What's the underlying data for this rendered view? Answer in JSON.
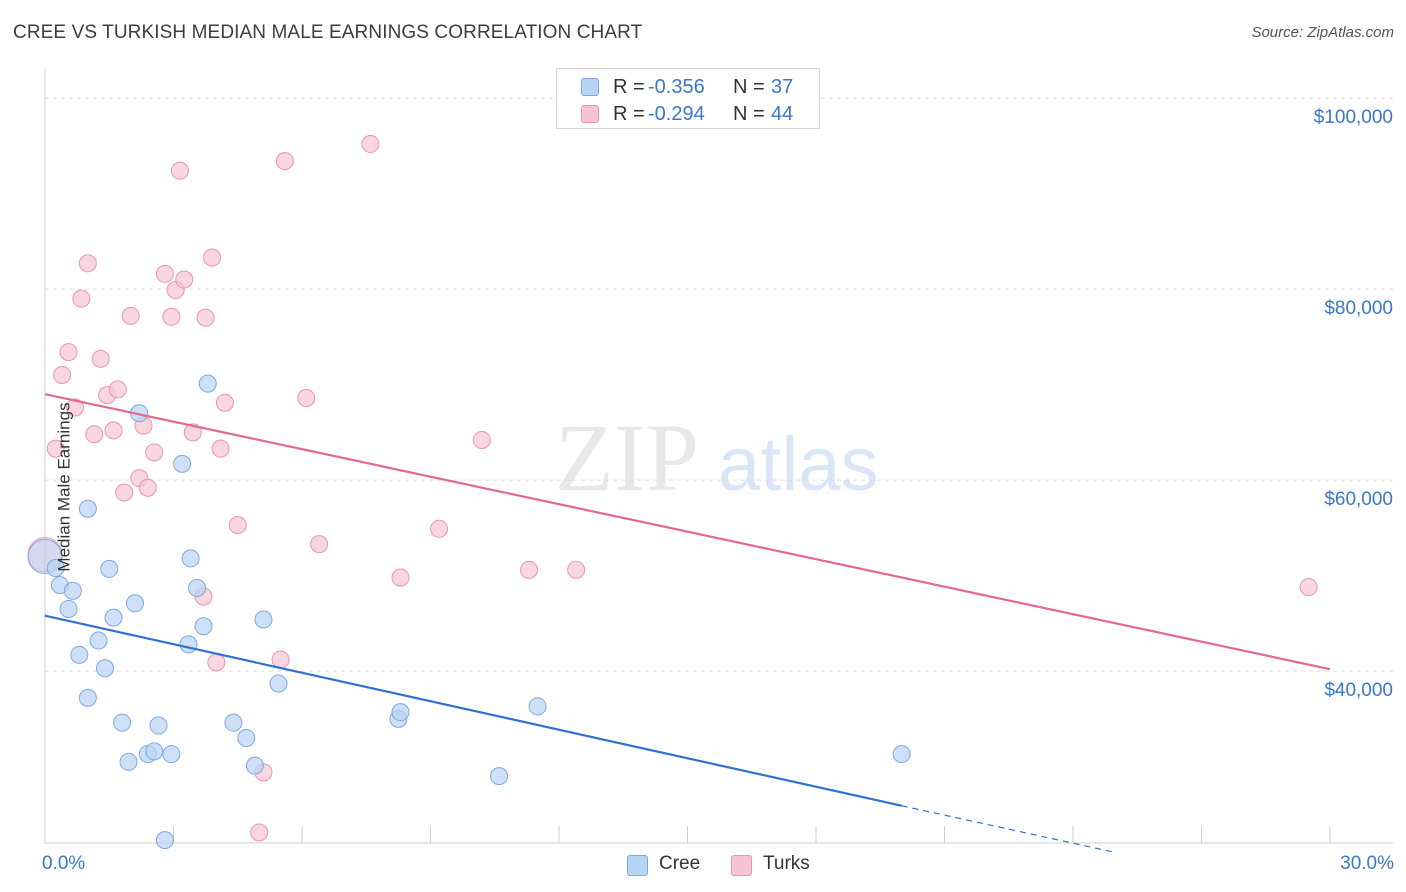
{
  "header": {
    "title": "CREE VS TURKISH MEDIAN MALE EARNINGS CORRELATION CHART",
    "source": "Source: ZipAtlas.com"
  },
  "watermark": {
    "zip": "ZIP",
    "atlas": "atlas"
  },
  "legend": {
    "r_label": "R =",
    "n_label": "N =",
    "entries": [
      {
        "name": "Cree",
        "r": "-0.356",
        "n": "37"
      },
      {
        "name": "Turks",
        "r": "-0.294",
        "n": "44"
      }
    ]
  },
  "colors": {
    "cree_fill": "#b8d3f4",
    "cree_stroke": "#7ea9e0",
    "cree_line": "#2f72d0",
    "turks_fill": "#f7c4d3",
    "turks_stroke": "#e996b0",
    "turks_line": "#e4698f",
    "axis_text": "#3a78c9",
    "grid": "#dddddd"
  },
  "chart_data": {
    "type": "scatter",
    "title": "CREE VS TURKISH MEDIAN MALE EARNINGS CORRELATION CHART",
    "xlabel": "",
    "ylabel": "Median Male Earnings",
    "xlim": [
      0,
      30
    ],
    "ylim": [
      22000,
      102000
    ],
    "x_tick_labels": [
      "0.0%",
      "30.0%"
    ],
    "y_ticks": [
      40000,
      60000,
      80000,
      100000
    ],
    "y_tick_labels": [
      "$40,000",
      "$60,000",
      "$80,000",
      "$100,000"
    ],
    "grid": true,
    "legend_position": "top-center",
    "series": [
      {
        "name": "Cree",
        "points": [
          [
            0.0,
            52000
          ],
          [
            0.25,
            50800
          ],
          [
            0.35,
            49000
          ],
          [
            0.55,
            46500
          ],
          [
            0.65,
            48400
          ],
          [
            0.8,
            41700
          ],
          [
            1.0,
            37200
          ],
          [
            1.25,
            43200
          ],
          [
            1.4,
            40300
          ],
          [
            1.5,
            50700
          ],
          [
            1.6,
            45600
          ],
          [
            1.8,
            34600
          ],
          [
            1.95,
            30500
          ],
          [
            2.1,
            47100
          ],
          [
            2.2,
            67000
          ],
          [
            2.4,
            31300
          ],
          [
            2.55,
            31600
          ],
          [
            2.65,
            34300
          ],
          [
            2.8,
            22300
          ],
          [
            2.95,
            31300
          ],
          [
            3.2,
            61700
          ],
          [
            3.4,
            51800
          ],
          [
            3.35,
            42800
          ],
          [
            3.55,
            48700
          ],
          [
            3.7,
            44700
          ],
          [
            3.8,
            70100
          ],
          [
            4.4,
            34600
          ],
          [
            4.7,
            33000
          ],
          [
            4.9,
            30100
          ],
          [
            5.1,
            45400
          ],
          [
            5.45,
            38700
          ],
          [
            8.25,
            35000
          ],
          [
            8.3,
            35700
          ],
          [
            10.6,
            29000
          ],
          [
            11.5,
            36300
          ],
          [
            20.0,
            31300
          ],
          [
            1.0,
            57000
          ]
        ],
        "trend": {
          "x0": 0,
          "y0": 45800,
          "x1": 20,
          "y1": 25900,
          "dashed_to": {
            "x": 25,
            "y": 21000
          }
        }
      },
      {
        "name": "Turks",
        "points": [
          [
            0.0,
            52200
          ],
          [
            0.25,
            63300
          ],
          [
            0.4,
            71000
          ],
          [
            0.55,
            73400
          ],
          [
            0.7,
            67600
          ],
          [
            0.85,
            79000
          ],
          [
            1.0,
            82700
          ],
          [
            1.15,
            64800
          ],
          [
            1.3,
            72700
          ],
          [
            1.45,
            68900
          ],
          [
            1.6,
            65200
          ],
          [
            1.7,
            69500
          ],
          [
            1.85,
            58700
          ],
          [
            2.0,
            77200
          ],
          [
            2.2,
            60200
          ],
          [
            2.3,
            65700
          ],
          [
            2.4,
            59200
          ],
          [
            2.55,
            62900
          ],
          [
            2.8,
            81600
          ],
          [
            2.95,
            77100
          ],
          [
            3.05,
            79900
          ],
          [
            3.15,
            92400
          ],
          [
            3.25,
            81000
          ],
          [
            3.45,
            65000
          ],
          [
            3.7,
            47800
          ],
          [
            3.75,
            77000
          ],
          [
            3.9,
            83300
          ],
          [
            4.0,
            40900
          ],
          [
            4.1,
            63300
          ],
          [
            4.2,
            68100
          ],
          [
            4.5,
            55300
          ],
          [
            5.0,
            23100
          ],
          [
            5.1,
            29400
          ],
          [
            5.5,
            41200
          ],
          [
            5.6,
            93400
          ],
          [
            6.1,
            68600
          ],
          [
            6.4,
            53300
          ],
          [
            7.6,
            95200
          ],
          [
            8.3,
            49800
          ],
          [
            9.2,
            54900
          ],
          [
            10.2,
            64200
          ],
          [
            11.3,
            50600
          ],
          [
            12.4,
            50600
          ],
          [
            29.5,
            48800
          ]
        ],
        "trend": {
          "x0": 0,
          "y0": 69000,
          "x1": 30,
          "y1": 40200
        }
      }
    ]
  }
}
